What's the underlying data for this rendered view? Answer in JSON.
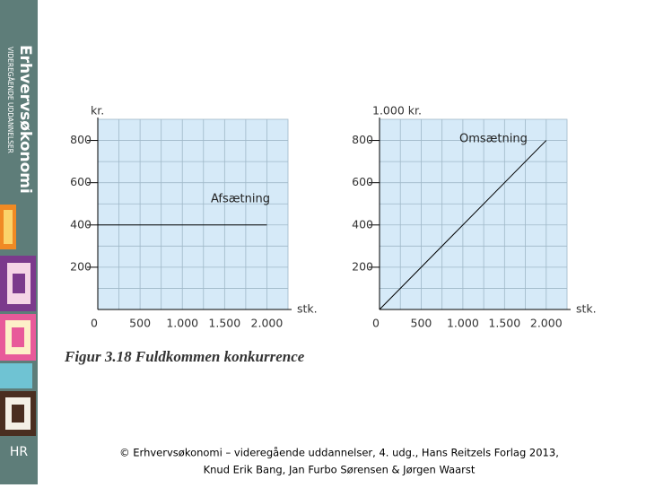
{
  "sidebar": {
    "brand": "Erhvervsøkonomi",
    "subtitle": "VIDEREGÅENDE UDDANNELSER",
    "logo": "HR"
  },
  "caption": "Figur 3.18 Fuldkommen konkurrence",
  "footer": [
    "© Erhvervsøkonomi – videregående uddannelser, 4. udg., Hans Reitzels Forlag 2013,",
    "Knud Erik Bang, Jan Furbo Sørensen & Jørgen Waarst"
  ],
  "chart_data": [
    {
      "type": "line",
      "y_label": "kr.",
      "x_label": "stk.",
      "series": [
        {
          "name": "Afsætning",
          "color": "#000000",
          "x": [
            0,
            2000
          ],
          "values": [
            400,
            400
          ]
        }
      ],
      "xlim": [
        0,
        2250
      ],
      "ylim": [
        0,
        900
      ],
      "xticks": [
        0,
        500,
        {
          "value": 1000,
          "label": "1.000"
        },
        {
          "value": 1500,
          "label": "1.500"
        },
        {
          "value": 2000,
          "label": "2.000"
        }
      ],
      "yticks": [
        200,
        400,
        600,
        800
      ],
      "grid": true
    },
    {
      "type": "line",
      "y_label": "1.000 kr.",
      "x_label": "stk.",
      "series": [
        {
          "name": "Omsætning",
          "color": "#000000",
          "x": [
            0,
            2000
          ],
          "values": [
            0,
            800
          ]
        }
      ],
      "xlim": [
        0,
        2250
      ],
      "ylim": [
        0,
        900
      ],
      "xticks": [
        0,
        500,
        {
          "value": 1000,
          "label": "1.000"
        },
        {
          "value": 1500,
          "label": "1.500"
        },
        {
          "value": 2000,
          "label": "2.000"
        }
      ],
      "yticks": [
        200,
        400,
        600,
        800
      ],
      "grid": true
    }
  ]
}
